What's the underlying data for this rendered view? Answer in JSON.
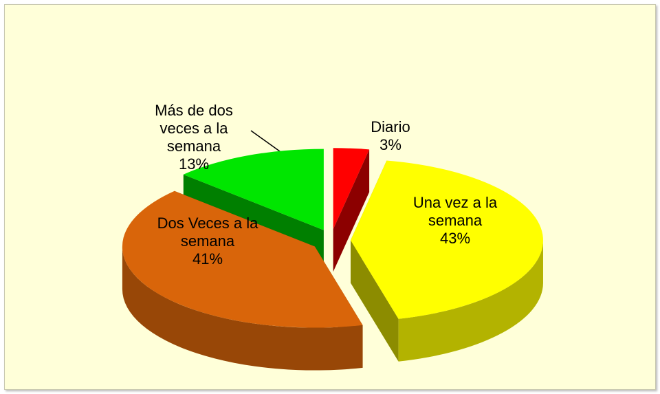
{
  "chart_data": {
    "type": "pie3d",
    "categories": [
      "Diario",
      "Una vez a la semana",
      "Dos Veces a la semana",
      "Más de dos veces a la semana"
    ],
    "values": [
      3,
      43,
      41,
      13
    ],
    "value_labels": [
      "3%",
      "43%",
      "41%",
      "13%"
    ],
    "colors": [
      "#ff0000",
      "#ffff00",
      "#d9650a",
      "#00e600"
    ]
  }
}
